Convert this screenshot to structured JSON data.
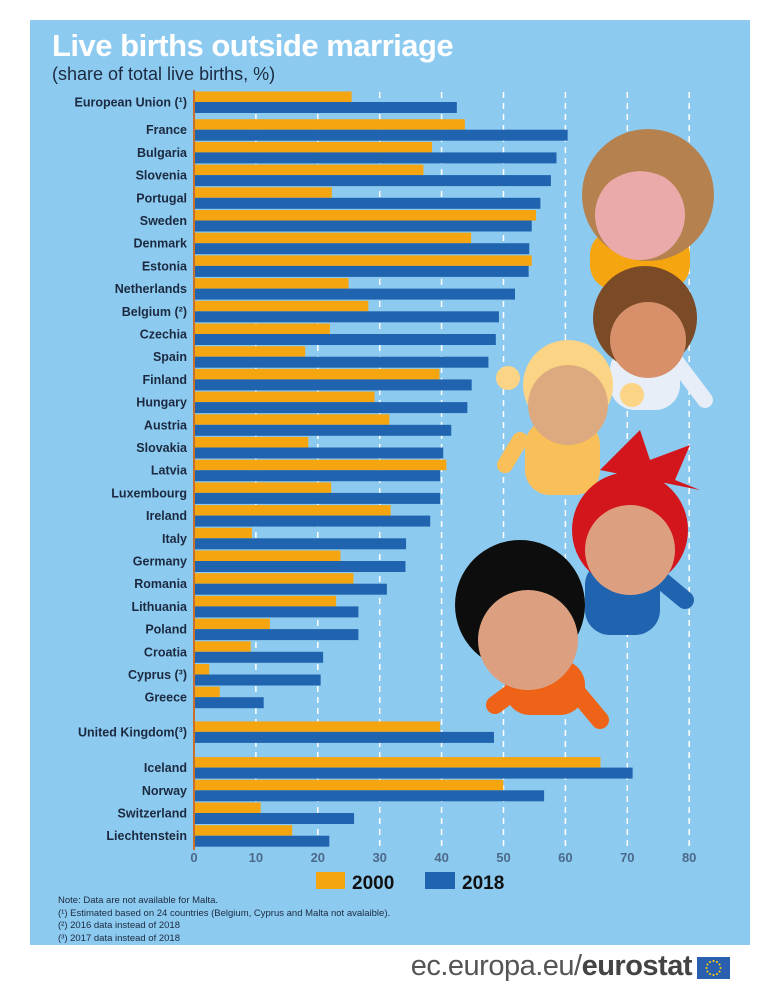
{
  "title": "Live births outside marriage",
  "subtitle": "(share of total live births, %)",
  "colors": {
    "background": "#8dcaef",
    "y2000": "#f5a50f",
    "y2018": "#2064b0",
    "title": "#ffffff"
  },
  "chart_data": {
    "type": "bar",
    "orientation": "horizontal",
    "title": "Live births outside marriage",
    "subtitle": "(share of total live births, %)",
    "xlim": [
      0,
      80
    ],
    "x_ticks": [
      "0",
      "10",
      "20",
      "30",
      "40",
      "50",
      "60",
      "70",
      "80"
    ],
    "grid": "vertical dashed",
    "legend_placement": "bottom",
    "categories": [
      "European Union (¹)",
      "France",
      "Bulgaria",
      "Slovenia",
      "Portugal",
      "Sweden",
      "Denmark",
      "Estonia",
      "Netherlands",
      "Belgium (²)",
      "Czechia",
      "Spain",
      "Finland",
      "Hungary",
      "Austria",
      "Slovakia",
      "Latvia",
      "Luxembourg",
      "Ireland",
      "Italy",
      "Germany",
      "Romania",
      "Lithuania",
      "Poland",
      "Croatia",
      "Cyprus (³)",
      "Greece",
      "United Kingdom(³)",
      "Iceland",
      "Norway",
      "Switzerland",
      "Liechtenstein"
    ],
    "series": [
      {
        "name": "2000",
        "values": [
          25.3,
          43.6,
          38.3,
          36.9,
          22.1,
          55.1,
          44.6,
          54.4,
          24.8,
          28.0,
          21.8,
          17.8,
          39.5,
          29.0,
          31.4,
          18.3,
          40.6,
          22.0,
          31.6,
          9.2,
          23.5,
          25.6,
          22.8,
          12.1,
          9.0,
          2.3,
          4.0,
          39.6,
          65.5,
          49.8,
          10.6,
          15.7
        ]
      },
      {
        "name": "2018",
        "values": [
          42.3,
          60.2,
          58.4,
          57.5,
          55.8,
          54.4,
          54.0,
          53.9,
          51.7,
          49.1,
          48.6,
          47.4,
          44.7,
          44.0,
          41.4,
          40.1,
          39.6,
          39.6,
          38.0,
          34.1,
          34.0,
          31.0,
          26.4,
          26.4,
          20.7,
          20.3,
          11.1,
          48.3,
          70.7,
          56.4,
          25.7,
          21.7
        ]
      }
    ]
  },
  "legend": {
    "y2000": "2000",
    "y2018": "2018"
  },
  "notes": [
    "Note: Data are not available for Malta.",
    "(¹) Estimated based on 24 countries (Belgium, Cyprus and Malta not avalaible).",
    "(²) 2016 data instead of 2018",
    "(³) 2017 data instead of 2018"
  ],
  "footer": {
    "domain": "ec.europa.eu/",
    "brand": "eurostat",
    "logo_icon": "eu-flag-icon"
  }
}
